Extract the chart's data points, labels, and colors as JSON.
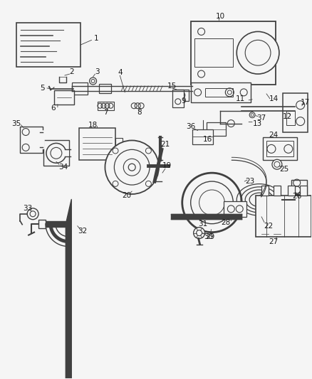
{
  "background": "#f5f5f5",
  "line_color": "#404040",
  "label_color": "#1a1a1a",
  "figsize": [
    4.38,
    5.33
  ],
  "dpi": 100
}
